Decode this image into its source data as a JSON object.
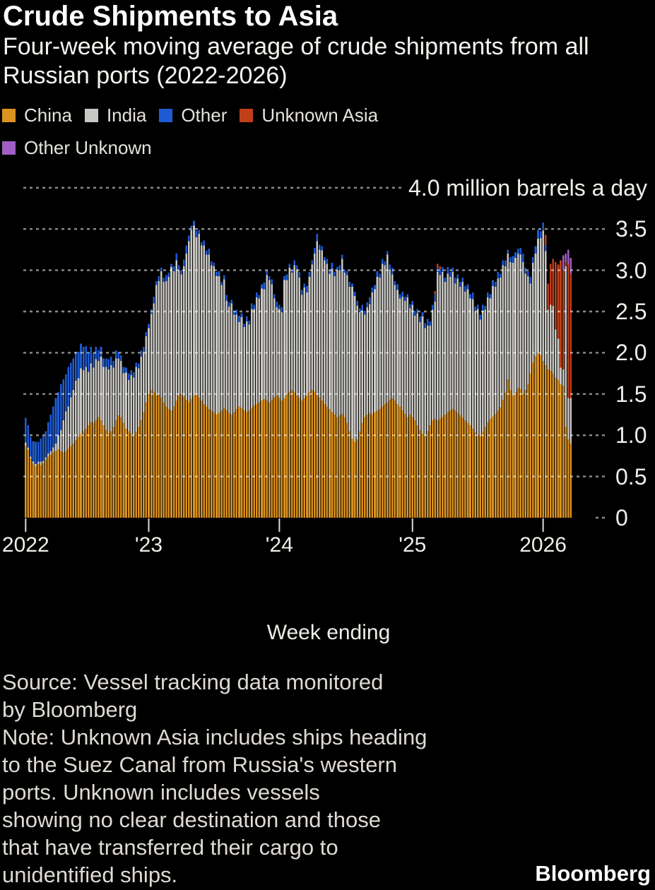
{
  "title": "Crude Shipments to Asia",
  "subtitle": "Four-week moving average of crude shipments from all\nRussian ports (2022-2026)",
  "legend": {
    "items": [
      {
        "label": "China",
        "color": "#DB9221"
      },
      {
        "label": "India",
        "color": "#C9C7C3"
      },
      {
        "label": "Other",
        "color": "#1E5BD3"
      },
      {
        "label": "Unknown Asia",
        "color": "#C03F1A"
      },
      {
        "label": "Other Unknown",
        "color": "#A05FC4"
      }
    ]
  },
  "axis": {
    "y_ticks": [
      {
        "v": 0,
        "label": "0"
      },
      {
        "v": 0.5,
        "label": "0.5"
      },
      {
        "v": 1,
        "label": "1.0"
      },
      {
        "v": 1.5,
        "label": "1.5"
      },
      {
        "v": 2,
        "label": "2.0"
      },
      {
        "v": 2.5,
        "label": "2.5"
      },
      {
        "v": 3,
        "label": "3.0"
      },
      {
        "v": 3.5,
        "label": "3.5"
      },
      {
        "v": 4,
        "label": "4.0 million barrels a day"
      }
    ],
    "x_ticks": [
      {
        "label": "2022",
        "week": 0
      },
      {
        "label": "'23",
        "week": 49
      },
      {
        "label": "'24",
        "week": 101
      },
      {
        "label": "'25",
        "week": 154
      },
      {
        "label": "2026",
        "week": 206
      }
    ],
    "x_label": "Week ending"
  },
  "source_note": "Source: Vessel tracking data monitored\nby Bloomberg\nNote: Unknown Asia includes ships heading\nto the Suez Canal from Russia's western\nports. Unknown includes vessels\nshowing no clear destination and those\nthat have transferred their cargo to\nunidentified ships.",
  "brand": "Bloomberg",
  "chart_data": {
    "type": "bar",
    "stacked": true,
    "title": "Crude Shipments to Asia",
    "unit": "million barrels a day",
    "ylim": [
      0,
      4
    ],
    "x_range": "weekly bars, late Jan 2022 through Feb 2026",
    "series": [
      {
        "name": "China",
        "color": "#DB9221",
        "values": [
          0.87,
          0.82,
          0.72,
          0.66,
          0.63,
          0.65,
          0.64,
          0.66,
          0.7,
          0.74,
          0.76,
          0.79,
          0.81,
          0.83,
          0.81,
          0.79,
          0.81,
          0.84,
          0.87,
          0.9,
          0.94,
          0.98,
          1.02,
          1.05,
          1.08,
          1.12,
          1.16,
          1.15,
          1.18,
          1.22,
          1.18,
          1.12,
          1.06,
          1.02,
          1.05,
          1.1,
          1.18,
          1.24,
          1.22,
          1.15,
          1.08,
          1.05,
          1.02,
          1.0,
          1.04,
          1.1,
          1.18,
          1.28,
          1.4,
          1.5,
          1.55,
          1.52,
          1.48,
          1.5,
          1.46,
          1.4,
          1.35,
          1.32,
          1.3,
          1.35,
          1.42,
          1.48,
          1.5,
          1.47,
          1.43,
          1.4,
          1.44,
          1.48,
          1.5,
          1.46,
          1.42,
          1.38,
          1.35,
          1.32,
          1.3,
          1.28,
          1.25,
          1.27,
          1.3,
          1.33,
          1.3,
          1.27,
          1.25,
          1.28,
          1.32,
          1.35,
          1.33,
          1.3,
          1.28,
          1.3,
          1.33,
          1.36,
          1.38,
          1.4,
          1.42,
          1.44,
          1.42,
          1.4,
          1.43,
          1.46,
          1.48,
          1.45,
          1.42,
          1.45,
          1.5,
          1.53,
          1.55,
          1.52,
          1.48,
          1.45,
          1.42,
          1.45,
          1.48,
          1.52,
          1.55,
          1.53,
          1.5,
          1.46,
          1.42,
          1.38,
          1.35,
          1.32,
          1.28,
          1.25,
          1.22,
          1.24,
          1.26,
          1.22,
          1.15,
          1.05,
          0.96,
          0.92,
          0.95,
          1.05,
          1.15,
          1.22,
          1.25,
          1.27,
          1.25,
          1.28,
          1.3,
          1.32,
          1.35,
          1.38,
          1.4,
          1.43,
          1.45,
          1.42,
          1.38,
          1.35,
          1.3,
          1.26,
          1.22,
          1.25,
          1.22,
          1.18,
          1.12,
          1.06,
          1.02,
          1.0,
          1.05,
          1.12,
          1.18,
          1.2,
          1.18,
          1.2,
          1.22,
          1.25,
          1.28,
          1.3,
          1.32,
          1.3,
          1.27,
          1.24,
          1.21,
          1.18,
          1.15,
          1.12,
          1.08,
          1.04,
          1.0,
          0.99,
          1.03,
          1.1,
          1.16,
          1.2,
          1.23,
          1.26,
          1.3,
          1.34,
          1.43,
          1.52,
          1.68,
          1.55,
          1.48,
          1.52,
          1.58,
          1.56,
          1.5,
          1.55,
          1.62,
          1.75,
          1.88,
          1.96,
          2.0,
          1.97,
          1.9,
          1.85,
          1.8,
          1.78,
          1.75,
          1.7,
          1.67,
          1.62,
          1.6,
          1.1,
          0.95,
          0.9
        ]
      },
      {
        "name": "India",
        "color": "#C9C7C3",
        "values": [
          0.04,
          0.03,
          0.02,
          0.02,
          0.02,
          0.03,
          0.04,
          0.03,
          0.03,
          0.04,
          0.05,
          0.06,
          0.09,
          0.17,
          0.25,
          0.39,
          0.48,
          0.51,
          0.59,
          0.65,
          0.72,
          0.71,
          0.79,
          0.74,
          0.75,
          0.65,
          0.71,
          0.67,
          0.74,
          0.68,
          0.77,
          0.71,
          0.77,
          0.78,
          0.8,
          0.72,
          0.75,
          0.69,
          0.68,
          0.6,
          0.68,
          0.62,
          0.71,
          0.7,
          0.79,
          0.71,
          0.77,
          0.73,
          0.8,
          0.8,
          0.92,
          1.08,
          1.34,
          1.37,
          1.53,
          1.46,
          1.52,
          1.6,
          1.74,
          1.64,
          1.7,
          1.52,
          1.45,
          1.58,
          1.77,
          1.95,
          2.05,
          2.06,
          1.9,
          1.98,
          1.88,
          1.92,
          1.84,
          1.87,
          1.76,
          1.77,
          1.68,
          1.66,
          1.52,
          1.56,
          1.33,
          1.29,
          1.35,
          1.18,
          1.14,
          1.02,
          1.1,
          1.01,
          1.1,
          1.04,
          1.2,
          1.17,
          1.29,
          1.26,
          1.36,
          1.33,
          1.52,
          1.48,
          1.4,
          1.2,
          1.07,
          1.08,
          1.07,
          1.43,
          1.38,
          1.5,
          1.42,
          1.54,
          1.53,
          1.46,
          1.28,
          1.34,
          1.25,
          1.4,
          1.52,
          1.67,
          1.85,
          1.79,
          1.82,
          1.74,
          1.73,
          1.64,
          1.74,
          1.68,
          1.78,
          1.76,
          1.88,
          1.75,
          1.79,
          1.75,
          1.84,
          1.77,
          1.62,
          1.44,
          1.36,
          1.24,
          1.3,
          1.32,
          1.48,
          1.49,
          1.62,
          1.59,
          1.73,
          1.68,
          1.79,
          1.58,
          1.5,
          1.4,
          1.38,
          1.31,
          1.38,
          1.37,
          1.45,
          1.29,
          1.36,
          1.27,
          1.36,
          1.31,
          1.42,
          1.3,
          1.28,
          1.21,
          1.34,
          1.42,
          1.8,
          1.74,
          1.76,
          1.61,
          1.68,
          1.62,
          1.66,
          1.54,
          1.63,
          1.56,
          1.65,
          1.56,
          1.62,
          1.54,
          1.57,
          1.46,
          1.53,
          1.41,
          1.48,
          1.42,
          1.51,
          1.46,
          1.58,
          1.54,
          1.6,
          1.57,
          1.63,
          1.53,
          1.52,
          1.55,
          1.61,
          1.63,
          1.62,
          1.63,
          1.6,
          1.41,
          1.31,
          1.09,
          1.21,
          1.24,
          1.38,
          1.42,
          1.58,
          1.38,
          0.72,
          0.8,
          0.82,
          0.58,
          0.5,
          0.2,
          0.2,
          1.95,
          0.5,
          0.55
        ]
      },
      {
        "name": "Other",
        "color": "#1E5BD3",
        "values": [
          0.3,
          0.27,
          0.24,
          0.25,
          0.27,
          0.24,
          0.28,
          0.3,
          0.32,
          0.38,
          0.44,
          0.5,
          0.55,
          0.52,
          0.56,
          0.5,
          0.45,
          0.48,
          0.42,
          0.38,
          0.35,
          0.32,
          0.3,
          0.28,
          0.25,
          0.22,
          0.2,
          0.18,
          0.15,
          0.13,
          0.12,
          0.1,
          0.1,
          0.12,
          0.1,
          0.08,
          0.1,
          0.08,
          0.07,
          0.08,
          0.06,
          0.08,
          0.06,
          0.07,
          0.05,
          0.06,
          0.08,
          0.06,
          0.05,
          0.05,
          0.06,
          0.08,
          0.05,
          0.06,
          0.04,
          0.05,
          0.07,
          0.05,
          0.04,
          0.06,
          0.08,
          0.06,
          0.05,
          0.08,
          0.1,
          0.07,
          0.05,
          0.06,
          0.08,
          0.05,
          0.04,
          0.06,
          0.05,
          0.07,
          0.05,
          0.04,
          0.05,
          0.06,
          0.04,
          0.05,
          0.07,
          0.05,
          0.04,
          0.05,
          0.06,
          0.08,
          0.05,
          0.04,
          0.06,
          0.05,
          0.07,
          0.05,
          0.06,
          0.04,
          0.05,
          0.08,
          0.06,
          0.05,
          0.06,
          0.05,
          0.07,
          0.05,
          0.06,
          0.05,
          0.07,
          0.05,
          0.04,
          0.06,
          0.05,
          0.07,
          0.06,
          0.05,
          0.08,
          0.06,
          0.05,
          0.07,
          0.09,
          0.06,
          0.05,
          0.04,
          0.06,
          0.05,
          0.07,
          0.05,
          0.04,
          0.06,
          0.05,
          0.04,
          0.05,
          0.06,
          0.04,
          0.05,
          0.06,
          0.05,
          0.07,
          0.05,
          0.06,
          0.08,
          0.06,
          0.05,
          0.07,
          0.05,
          0.06,
          0.05,
          0.04,
          0.06,
          0.08,
          0.05,
          0.07,
          0.05,
          0.06,
          0.05,
          0.04,
          0.05,
          0.05,
          0.06,
          0.05,
          0.07,
          0.05,
          0.06,
          0.08,
          0.05,
          0.06,
          0.09,
          0.05,
          0.07,
          0.06,
          0.05,
          0.08,
          0.06,
          0.05,
          0.07,
          0.05,
          0.06,
          0.05,
          0.07,
          0.06,
          0.05,
          0.08,
          0.06,
          0.05,
          0.06,
          0.07,
          0.05,
          0.06,
          0.05,
          0.07,
          0.06,
          0.08,
          0.05,
          0.06,
          0.07,
          0.05,
          0.06,
          0.08,
          0.07,
          0.06,
          0.08,
          0.1,
          0.07,
          0.06,
          0.08,
          0.07,
          0.09,
          0.11,
          0.08,
          0.1,
          0.08,
          0.0,
          0.0,
          0.0,
          0.0,
          0.0,
          0.0,
          0.0,
          0.0,
          0.0,
          0.0
        ]
      },
      {
        "name": "Unknown Asia",
        "color": "#C03F1A",
        "values_sparse": {
          "163": 0.04,
          "164": 0.05,
          "165": 0.04,
          "207": 0.12,
          "208": 0.32,
          "209": 0.5,
          "210": 0.57,
          "211": 0.82,
          "212": 0.9,
          "213": 1.3,
          "214": 1.2,
          "215": 0.05,
          "216": 1.62,
          "217": 1.5
        }
      },
      {
        "name": "Other Unknown",
        "color": "#A05FC4",
        "values_sparse": {
          "214": 0.18,
          "215": 0.1,
          "216": 0.18,
          "217": 0.2
        }
      }
    ]
  }
}
